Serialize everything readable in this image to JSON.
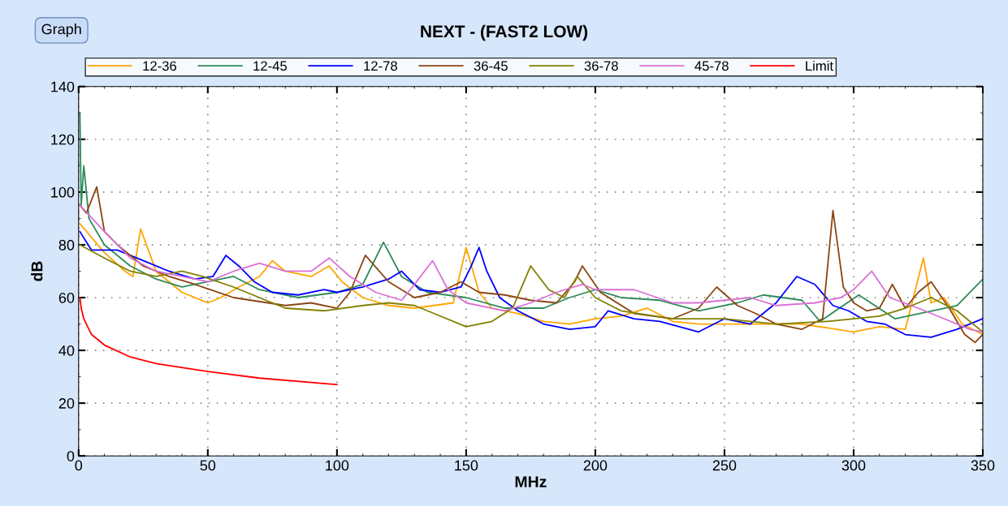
{
  "chart_data": {
    "type": "line",
    "title": "NEXT - (FAST2 LOW)",
    "xlabel": "MHz",
    "ylabel": "dB",
    "annotations": [
      "Graph"
    ],
    "xlim": [
      0,
      350
    ],
    "ylim": [
      0,
      140
    ],
    "xticks": [
      0,
      50,
      100,
      150,
      200,
      250,
      300,
      350
    ],
    "yticks": [
      0,
      20,
      40,
      60,
      80,
      100,
      120,
      140
    ],
    "grid": true,
    "legend": "top",
    "marker": "none",
    "line_style": "solid",
    "series": [
      {
        "name": "12-36",
        "color": "#ffa500",
        "x": [
          0.5,
          10,
          18,
          21,
          24,
          30,
          40,
          50,
          55,
          62,
          70,
          75,
          80,
          90,
          97,
          102,
          110,
          120,
          130,
          145,
          150,
          155,
          160,
          170,
          180,
          190,
          200,
          210,
          220,
          230,
          240,
          260,
          280,
          300,
          310,
          320,
          327,
          330,
          335,
          342,
          350
        ],
        "values": [
          88,
          77,
          70,
          68,
          86,
          70,
          62,
          58,
          60,
          64,
          68,
          74,
          70,
          68,
          72,
          66,
          60,
          57,
          56,
          58,
          79,
          62,
          56,
          54,
          51,
          50,
          52,
          53,
          56,
          51,
          50,
          50,
          50,
          47,
          49,
          48,
          75,
          58,
          60,
          50,
          46
        ]
      },
      {
        "name": "12-45",
        "color": "#2e8b57",
        "x": [
          0.5,
          1,
          2,
          4,
          10,
          20,
          30,
          40,
          50,
          60,
          70,
          85,
          100,
          110,
          118,
          125,
          135,
          150,
          165,
          180,
          190,
          200,
          210,
          225,
          240,
          255,
          265,
          280,
          287,
          302,
          316,
          340,
          350
        ],
        "values": [
          130,
          95,
          110,
          90,
          80,
          72,
          67,
          64,
          66,
          68,
          63,
          60,
          62,
          65,
          81,
          68,
          62,
          60,
          56,
          56,
          60,
          63,
          60,
          59,
          55,
          58,
          61,
          59,
          51,
          61,
          52,
          57,
          67
        ]
      },
      {
        "name": "12-78",
        "color": "#0000ff",
        "x": [
          0.5,
          5,
          15,
          25,
          35,
          45,
          52,
          57,
          62,
          68,
          75,
          85,
          95,
          100,
          110,
          120,
          125,
          132,
          140,
          148,
          152,
          155,
          158,
          163,
          170,
          180,
          190,
          200,
          205,
          215,
          225,
          240,
          250,
          260,
          270,
          278,
          285,
          292,
          298,
          305,
          312,
          320,
          330,
          340,
          350
        ],
        "values": [
          85,
          78,
          78,
          74,
          70,
          67,
          68,
          76,
          72,
          66,
          62,
          61,
          63,
          62,
          64,
          67,
          70,
          63,
          62,
          64,
          72,
          79,
          70,
          60,
          55,
          50,
          48,
          49,
          55,
          52,
          51,
          47,
          52,
          50,
          58,
          68,
          65,
          57,
          55,
          51,
          50,
          46,
          45,
          48,
          52
        ]
      },
      {
        "name": "36-45",
        "color": "#8b4513",
        "x": [
          0.5,
          3,
          7,
          10,
          15,
          25,
          35,
          45,
          60,
          80,
          90,
          100,
          105,
          111,
          120,
          130,
          140,
          148,
          155,
          165,
          175,
          185,
          192,
          195,
          202,
          215,
          230,
          240,
          247,
          255,
          262,
          270,
          280,
          288,
          292,
          296,
          300,
          305,
          310,
          315,
          320,
          325,
          330,
          337,
          343,
          347,
          350
        ],
        "values": [
          95,
          92,
          102,
          85,
          80,
          72,
          68,
          65,
          60,
          57,
          58,
          56,
          62,
          76,
          66,
          60,
          62,
          66,
          62,
          61,
          59,
          58,
          66,
          72,
          62,
          54,
          52,
          56,
          64,
          57,
          54,
          50,
          48,
          52,
          93,
          64,
          58,
          55,
          56,
          65,
          56,
          62,
          66,
          56,
          46,
          43,
          46
        ]
      },
      {
        "name": "36-78",
        "color": "#808000",
        "x": [
          0.5,
          10,
          20,
          30,
          40,
          48,
          60,
          70,
          80,
          95,
          110,
          120,
          130,
          140,
          150,
          160,
          168,
          175,
          182,
          188,
          193,
          200,
          210,
          230,
          250,
          270,
          290,
          310,
          320,
          330,
          340,
          350
        ],
        "values": [
          80,
          75,
          70,
          68,
          70,
          68,
          64,
          60,
          56,
          55,
          57,
          58,
          57,
          53,
          49,
          51,
          56,
          72,
          63,
          60,
          68,
          60,
          55,
          52,
          52,
          50,
          51,
          53,
          56,
          60,
          55,
          47
        ]
      },
      {
        "name": "45-78",
        "color": "#da70d6",
        "x": [
          0.5,
          10,
          20,
          30,
          40,
          50,
          60,
          70,
          80,
          90,
          97,
          105,
          115,
          125,
          130,
          137,
          143,
          150,
          160,
          165,
          175,
          185,
          195,
          200,
          215,
          230,
          240,
          260,
          270,
          285,
          295,
          300,
          307,
          314,
          325,
          335,
          345,
          350
        ],
        "values": [
          95,
          85,
          75,
          70,
          68,
          66,
          70,
          73,
          70,
          70,
          75,
          68,
          62,
          59,
          65,
          74,
          63,
          58,
          56,
          55,
          58,
          62,
          65,
          63,
          63,
          58,
          58,
          60,
          57,
          58,
          60,
          63,
          70,
          60,
          56,
          52,
          48,
          47
        ]
      },
      {
        "name": "Limit",
        "color": "#ff0000",
        "x": [
          0.5,
          1,
          2,
          5,
          10,
          20,
          30,
          50,
          70,
          100
        ],
        "values": [
          60,
          56,
          52,
          46,
          42,
          37.5,
          35,
          32,
          29.5,
          27
        ]
      }
    ]
  }
}
